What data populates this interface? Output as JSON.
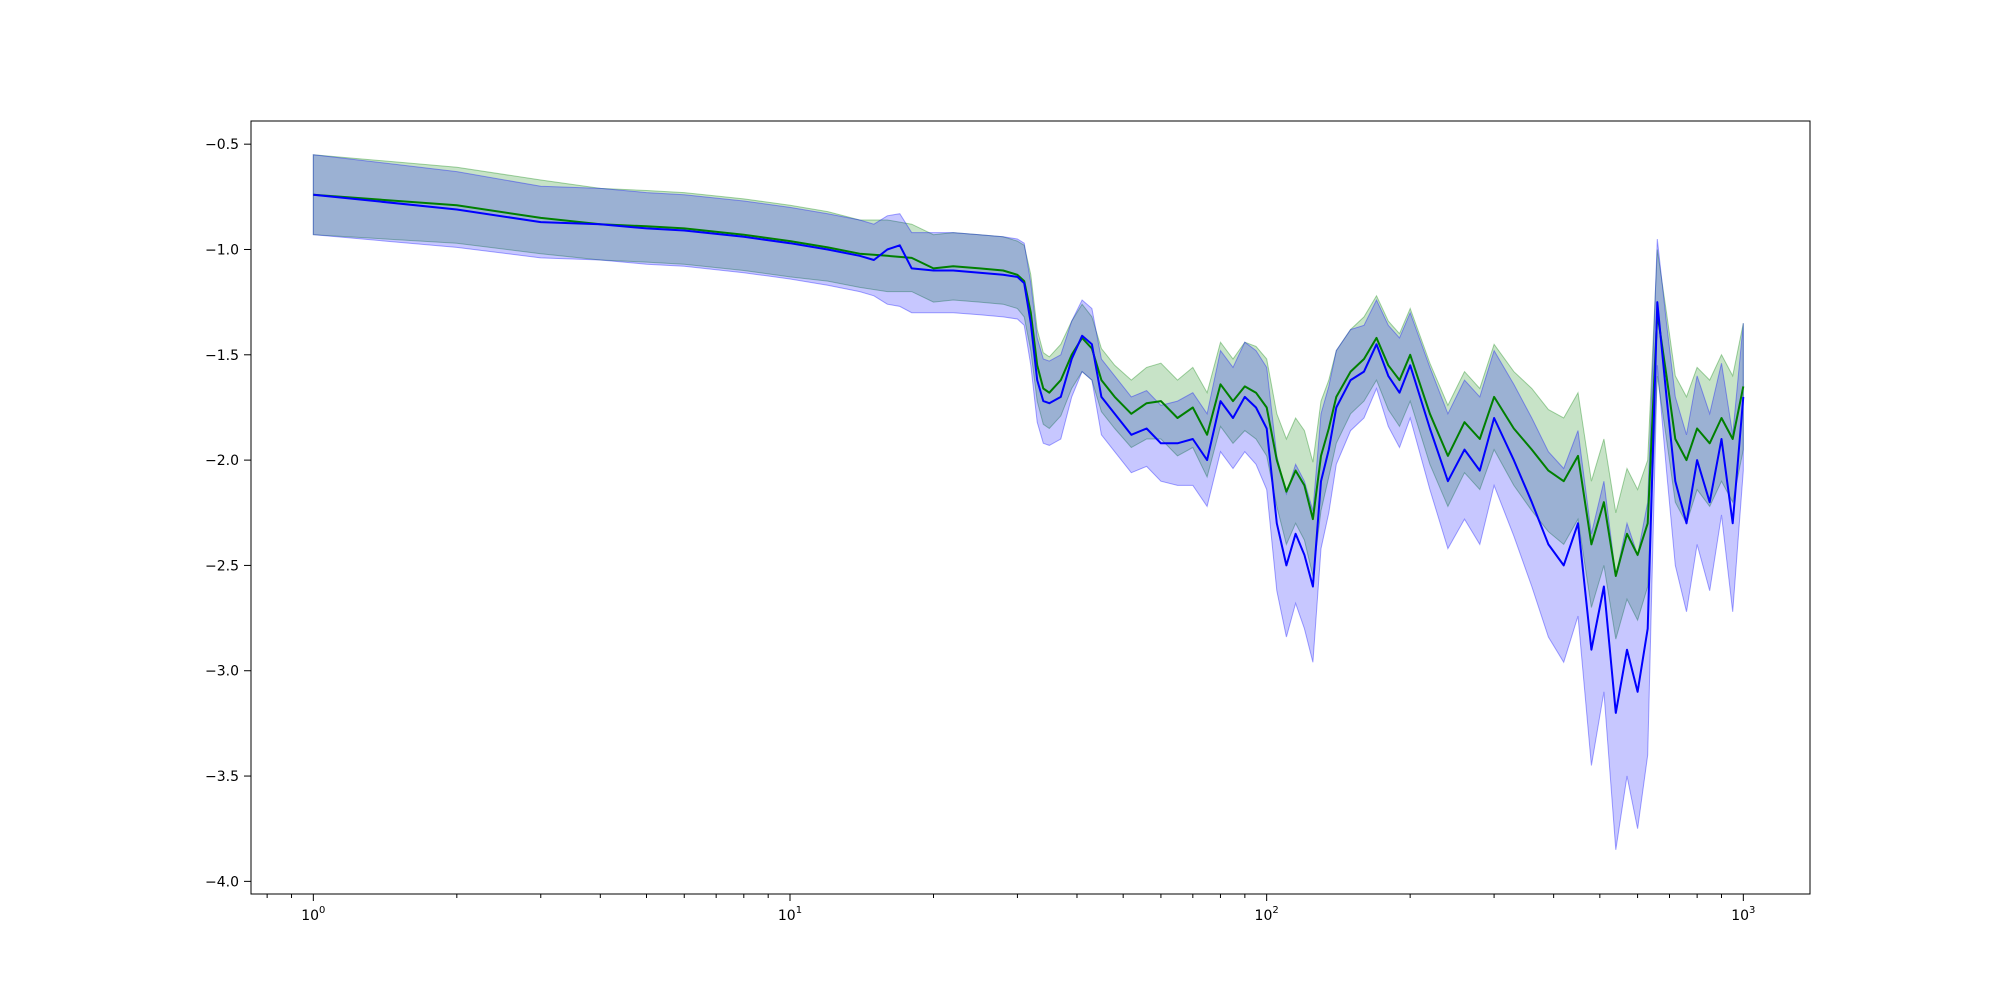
{
  "chart_data": {
    "type": "line",
    "title": "",
    "xlabel": "",
    "ylabel": "",
    "x_scale": "log",
    "xlim": [
      0.74,
      1380
    ],
    "ylim": [
      -4.06,
      -0.39
    ],
    "grid": false,
    "legend": "none",
    "x_ticks": [
      {
        "value": 1,
        "base": "10",
        "exp": "0"
      },
      {
        "value": 10,
        "base": "10",
        "exp": "1"
      },
      {
        "value": 100,
        "base": "10",
        "exp": "2"
      },
      {
        "value": 1000,
        "base": "10",
        "exp": "3"
      }
    ],
    "y_ticks": [
      {
        "value": -0.5,
        "label": "−0.5"
      },
      {
        "value": -1.0,
        "label": "−1.0"
      },
      {
        "value": -1.5,
        "label": "−1.5"
      },
      {
        "value": -2.0,
        "label": "−2.0"
      },
      {
        "value": -2.5,
        "label": "−2.5"
      },
      {
        "value": -3.0,
        "label": "−3.0"
      },
      {
        "value": -3.5,
        "label": "−3.5"
      },
      {
        "value": -4.0,
        "label": "−4.0"
      }
    ],
    "series": [
      {
        "color": "#008000",
        "band_color": "#008000",
        "band_opacity": 0.22,
        "x": [
          1,
          2,
          3,
          4,
          5,
          6,
          8,
          10,
          12,
          14,
          16,
          18,
          20,
          22,
          25,
          28,
          30,
          31,
          32,
          33,
          34,
          35,
          37,
          39,
          41,
          43,
          45,
          48,
          52,
          56,
          60,
          65,
          70,
          75,
          80,
          85,
          90,
          95,
          100,
          105,
          110,
          115,
          120,
          125,
          130,
          135,
          140,
          150,
          160,
          170,
          180,
          190,
          200,
          220,
          240,
          260,
          280,
          300,
          330,
          360,
          390,
          420,
          450,
          480,
          510,
          540,
          570,
          600,
          630,
          660,
          690,
          720,
          760,
          800,
          850,
          900,
          950,
          1000
        ],
        "y": [
          -0.74,
          -0.79,
          -0.85,
          -0.88,
          -0.89,
          -0.9,
          -0.93,
          -0.96,
          -0.99,
          -1.02,
          -1.03,
          -1.04,
          -1.09,
          -1.08,
          -1.09,
          -1.1,
          -1.12,
          -1.15,
          -1.3,
          -1.55,
          -1.66,
          -1.68,
          -1.62,
          -1.5,
          -1.42,
          -1.47,
          -1.62,
          -1.7,
          -1.78,
          -1.73,
          -1.72,
          -1.8,
          -1.75,
          -1.88,
          -1.64,
          -1.72,
          -1.65,
          -1.68,
          -1.75,
          -2.0,
          -2.15,
          -2.05,
          -2.12,
          -2.28,
          -1.98,
          -1.85,
          -1.7,
          -1.58,
          -1.52,
          -1.42,
          -1.55,
          -1.62,
          -1.5,
          -1.78,
          -1.98,
          -1.82,
          -1.9,
          -1.7,
          -1.85,
          -1.95,
          -2.05,
          -2.1,
          -1.98,
          -2.4,
          -2.2,
          -2.55,
          -2.35,
          -2.45,
          -2.3,
          -1.3,
          -1.6,
          -1.9,
          -2.0,
          -1.85,
          -1.92,
          -1.8,
          -1.9,
          -1.65
        ],
        "lower": [
          -0.93,
          -0.97,
          -1.02,
          -1.05,
          -1.06,
          -1.07,
          -1.1,
          -1.13,
          -1.15,
          -1.18,
          -1.2,
          -1.2,
          -1.25,
          -1.24,
          -1.25,
          -1.26,
          -1.28,
          -1.32,
          -1.48,
          -1.72,
          -1.83,
          -1.85,
          -1.79,
          -1.66,
          -1.58,
          -1.62,
          -1.77,
          -1.85,
          -1.94,
          -1.9,
          -1.9,
          -1.98,
          -1.94,
          -2.08,
          -1.84,
          -1.92,
          -1.86,
          -1.9,
          -1.98,
          -2.22,
          -2.4,
          -2.3,
          -2.38,
          -2.55,
          -2.24,
          -2.08,
          -1.92,
          -1.78,
          -1.72,
          -1.62,
          -1.76,
          -1.84,
          -1.72,
          -2.02,
          -2.22,
          -2.06,
          -2.14,
          -1.95,
          -2.12,
          -2.24,
          -2.34,
          -2.4,
          -2.28,
          -2.7,
          -2.5,
          -2.85,
          -2.66,
          -2.76,
          -2.6,
          -1.6,
          -1.9,
          -2.2,
          -2.3,
          -2.14,
          -2.22,
          -2.1,
          -2.2,
          -1.95
        ],
        "upper": [
          -0.55,
          -0.61,
          -0.67,
          -0.71,
          -0.72,
          -0.73,
          -0.76,
          -0.79,
          -0.82,
          -0.86,
          -0.86,
          -0.88,
          -0.93,
          -0.92,
          -0.93,
          -0.94,
          -0.96,
          -0.98,
          -1.12,
          -1.38,
          -1.49,
          -1.51,
          -1.45,
          -1.34,
          -1.26,
          -1.32,
          -1.47,
          -1.55,
          -1.62,
          -1.56,
          -1.54,
          -1.62,
          -1.56,
          -1.68,
          -1.44,
          -1.52,
          -1.44,
          -1.46,
          -1.52,
          -1.78,
          -1.9,
          -1.8,
          -1.86,
          -2.01,
          -1.72,
          -1.62,
          -1.48,
          -1.38,
          -1.32,
          -1.22,
          -1.34,
          -1.4,
          -1.28,
          -1.54,
          -1.74,
          -1.58,
          -1.66,
          -1.45,
          -1.58,
          -1.66,
          -1.76,
          -1.8,
          -1.68,
          -2.1,
          -1.9,
          -2.25,
          -2.04,
          -2.14,
          -2.0,
          -1.0,
          -1.3,
          -1.6,
          -1.7,
          -1.56,
          -1.62,
          -1.5,
          -1.6,
          -1.35
        ]
      },
      {
        "color": "#0000ff",
        "band_color": "#0000ff",
        "band_opacity": 0.22,
        "x": [
          1,
          2,
          3,
          4,
          5,
          6,
          8,
          10,
          12,
          14,
          15,
          16,
          17,
          18,
          20,
          22,
          25,
          28,
          30,
          31,
          32,
          33,
          34,
          35,
          37,
          39,
          41,
          43,
          45,
          48,
          52,
          56,
          60,
          65,
          70,
          75,
          80,
          85,
          90,
          95,
          100,
          105,
          110,
          115,
          120,
          125,
          130,
          135,
          140,
          150,
          160,
          170,
          180,
          190,
          200,
          220,
          240,
          260,
          280,
          300,
          330,
          360,
          390,
          420,
          450,
          480,
          510,
          540,
          570,
          600,
          630,
          660,
          690,
          720,
          760,
          800,
          850,
          900,
          950,
          1000
        ],
        "y": [
          -0.74,
          -0.81,
          -0.87,
          -0.88,
          -0.9,
          -0.91,
          -0.94,
          -0.97,
          -1.0,
          -1.03,
          -1.05,
          -1.0,
          -0.98,
          -1.09,
          -1.1,
          -1.1,
          -1.11,
          -1.12,
          -1.13,
          -1.16,
          -1.35,
          -1.62,
          -1.72,
          -1.73,
          -1.7,
          -1.52,
          -1.41,
          -1.45,
          -1.7,
          -1.78,
          -1.88,
          -1.85,
          -1.92,
          -1.92,
          -1.9,
          -2.0,
          -1.72,
          -1.8,
          -1.7,
          -1.75,
          -1.85,
          -2.3,
          -2.5,
          -2.35,
          -2.45,
          -2.6,
          -2.1,
          -1.95,
          -1.75,
          -1.62,
          -1.58,
          -1.45,
          -1.6,
          -1.68,
          -1.55,
          -1.85,
          -2.1,
          -1.95,
          -2.05,
          -1.8,
          -2.0,
          -2.2,
          -2.4,
          -2.5,
          -2.3,
          -2.9,
          -2.6,
          -3.2,
          -2.9,
          -3.1,
          -2.8,
          -1.25,
          -1.7,
          -2.1,
          -2.3,
          -2.0,
          -2.2,
          -1.9,
          -2.3,
          -1.7
        ],
        "lower": [
          -0.93,
          -0.99,
          -1.04,
          -1.05,
          -1.07,
          -1.08,
          -1.11,
          -1.14,
          -1.17,
          -1.2,
          -1.22,
          -1.26,
          -1.27,
          -1.3,
          -1.3,
          -1.3,
          -1.31,
          -1.32,
          -1.33,
          -1.36,
          -1.55,
          -1.82,
          -1.92,
          -1.93,
          -1.9,
          -1.7,
          -1.58,
          -1.62,
          -1.88,
          -1.96,
          -2.06,
          -2.03,
          -2.1,
          -2.12,
          -2.12,
          -2.22,
          -1.96,
          -2.04,
          -1.96,
          -2.02,
          -2.14,
          -2.62,
          -2.84,
          -2.68,
          -2.8,
          -2.96,
          -2.42,
          -2.25,
          -2.02,
          -1.86,
          -1.8,
          -1.66,
          -1.84,
          -1.94,
          -1.8,
          -2.14,
          -2.42,
          -2.28,
          -2.4,
          -2.12,
          -2.36,
          -2.6,
          -2.84,
          -2.96,
          -2.74,
          -3.45,
          -3.1,
          -3.85,
          -3.5,
          -3.75,
          -3.4,
          -1.55,
          -2.05,
          -2.5,
          -2.72,
          -2.4,
          -2.62,
          -2.26,
          -2.72,
          -2.05
        ],
        "upper": [
          -0.55,
          -0.63,
          -0.7,
          -0.71,
          -0.73,
          -0.74,
          -0.77,
          -0.8,
          -0.83,
          -0.86,
          -0.88,
          -0.84,
          -0.83,
          -0.92,
          -0.92,
          -0.92,
          -0.93,
          -0.94,
          -0.95,
          -0.97,
          -1.16,
          -1.42,
          -1.52,
          -1.53,
          -1.5,
          -1.34,
          -1.24,
          -1.28,
          -1.52,
          -1.6,
          -1.7,
          -1.67,
          -1.74,
          -1.72,
          -1.68,
          -1.78,
          -1.48,
          -1.56,
          -1.44,
          -1.48,
          -1.56,
          -1.98,
          -2.16,
          -2.02,
          -2.1,
          -2.24,
          -1.78,
          -1.65,
          -1.48,
          -1.38,
          -1.36,
          -1.24,
          -1.36,
          -1.42,
          -1.3,
          -1.56,
          -1.78,
          -1.62,
          -1.7,
          -1.48,
          -1.64,
          -1.8,
          -1.96,
          -2.04,
          -1.86,
          -2.35,
          -2.1,
          -2.55,
          -2.3,
          -2.45,
          -2.2,
          -0.95,
          -1.35,
          -1.7,
          -1.88,
          -1.6,
          -1.78,
          -1.54,
          -1.88,
          -1.35
        ]
      }
    ]
  }
}
